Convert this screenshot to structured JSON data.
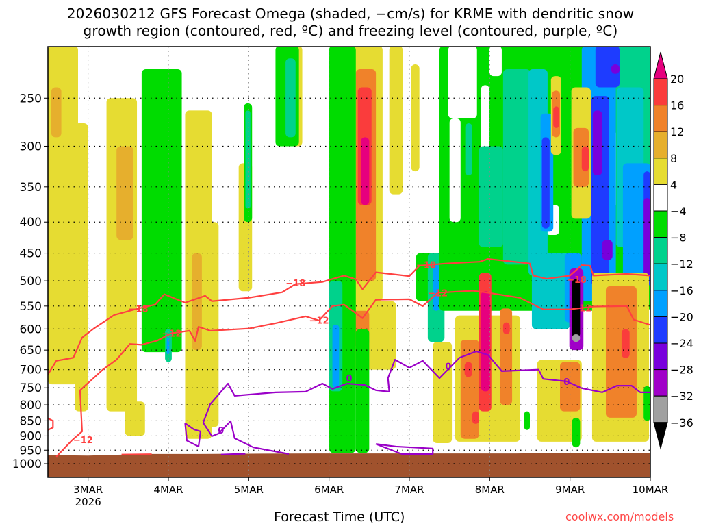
{
  "chart_data": {
    "type": "heatmap",
    "title_lines": [
      "2026030212 GFS Forecast Omega (shaded, −cm/s) for KRME with dendritic snow",
      "growth region (contoured, red, ºC) and freezing level (contoured, purple, ºC)"
    ],
    "xlabel": "Forecast Time (UTC)",
    "ylabel": "",
    "credit": "coolwx.com/models",
    "x_range_hours": [
      0,
      180
    ],
    "y_range_hpa": [
      205,
      1053
    ],
    "y_scale": "log",
    "grid": true,
    "x_ticks": [
      {
        "hour": 12,
        "label": "3MAR",
        "sub": "2026"
      },
      {
        "hour": 36,
        "label": "4MAR"
      },
      {
        "hour": 60,
        "label": "5MAR"
      },
      {
        "hour": 84,
        "label": "6MAR"
      },
      {
        "hour": 108,
        "label": "7MAR"
      },
      {
        "hour": 132,
        "label": "8MAR"
      },
      {
        "hour": 156,
        "label": "9MAR"
      },
      {
        "hour": 180,
        "label": "10MAR"
      }
    ],
    "y_ticks": [
      "250",
      "300",
      "350",
      "400",
      "450",
      "500",
      "550",
      "600",
      "650",
      "700",
      "750",
      "800",
      "850",
      "900",
      "950",
      "1000"
    ],
    "colorbar": {
      "labels": [
        "20",
        "16",
        "12",
        "8",
        "4",
        "−4",
        "−8",
        "−12",
        "−16",
        "−20",
        "−24",
        "−28",
        "−32",
        "−36"
      ],
      "over_color": "#e6007e",
      "under_color": "#000000",
      "colors": [
        "#fa3c3c",
        "#f0822a",
        "#e6af2d",
        "#e6dc32",
        "#ffffff",
        "#00dc00",
        "#00d28c",
        "#00c8c8",
        "#00a0ff",
        "#1e3cff",
        "#7800dc",
        "#a000c8",
        "#a0a0a0"
      ]
    },
    "omega_cells": [
      [
        0,
        9,
        205,
        740,
        6
      ],
      [
        1,
        4,
        240,
        290,
        9
      ],
      [
        8,
        12,
        275,
        820,
        6
      ],
      [
        17.5,
        26.6,
        250,
        820,
        6
      ],
      [
        20.5,
        25.5,
        300,
        428,
        10
      ],
      [
        23,
        29,
        790,
        900,
        6
      ],
      [
        41,
        49,
        262,
        910,
        6
      ],
      [
        43,
        46,
        450,
        650,
        10
      ],
      [
        47.5,
        51,
        400,
        870,
        6
      ],
      [
        57,
        61,
        320,
        520,
        6
      ],
      [
        72,
        76,
        205,
        300,
        6
      ],
      [
        91,
        100,
        205,
        540,
        6
      ],
      [
        92,
        98,
        224,
        500,
        12
      ],
      [
        92.6,
        96.7,
        240,
        375,
        17
      ],
      [
        93.5,
        96,
        290,
        375,
        22
      ],
      [
        90,
        104,
        540,
        700,
        6
      ],
      [
        91,
        96,
        560,
        640,
        12
      ],
      [
        102,
        106,
        205,
        360,
        6
      ],
      [
        108.5,
        111,
        220,
        330,
        6
      ],
      [
        28,
        40,
        224,
        655,
        -6
      ],
      [
        35,
        37,
        600,
        680,
        -10
      ],
      [
        35.5,
        36.3,
        620,
        660,
        -18
      ],
      [
        58.5,
        61,
        255,
        400,
        -6
      ],
      [
        59,
        60.5,
        262,
        380,
        -10
      ],
      [
        68,
        75,
        205,
        300,
        -6
      ],
      [
        71,
        74,
        215,
        290,
        -10
      ],
      [
        84,
        92,
        205,
        960,
        -6
      ],
      [
        84,
        88,
        500,
        760,
        -10
      ],
      [
        85,
        87,
        590,
        750,
        -18
      ],
      [
        92,
        96,
        600,
        960,
        -6
      ],
      [
        110,
        127,
        450,
        540,
        -6
      ],
      [
        113.5,
        118.5,
        450,
        630,
        -10
      ],
      [
        115,
        117,
        470,
        560,
        -20
      ],
      [
        117,
        180,
        205,
        560,
        -6
      ],
      [
        119.6,
        128.2,
        205,
        270,
        0
      ],
      [
        120,
        123.3,
        270,
        400,
        0
      ],
      [
        129.4,
        131.9,
        238,
        375,
        0
      ],
      [
        131.9,
        135.6,
        205,
        230,
        0
      ],
      [
        138.4,
        141.7,
        360,
        437,
        0
      ],
      [
        144.6,
        147.2,
        265,
        285,
        0
      ],
      [
        148.7,
        152.8,
        375,
        420,
        0
      ],
      [
        168.3,
        171.2,
        285,
        375,
        0
      ],
      [
        178,
        180,
        205,
        245,
        0
      ],
      [
        124.7,
        126.8,
        275,
        335,
        -10
      ],
      [
        128.8,
        136,
        300,
        440,
        -10
      ],
      [
        136,
        144.2,
        224,
        470,
        -10
      ],
      [
        169.7,
        180,
        205,
        440,
        -10
      ],
      [
        144.6,
        156,
        450,
        600,
        -13
      ],
      [
        143.6,
        149.3,
        224,
        490,
        -14
      ],
      [
        170,
        178,
        240,
        440,
        -14
      ],
      [
        147.2,
        151,
        265,
        415,
        -18
      ],
      [
        159.5,
        169.7,
        205,
        540,
        -18
      ],
      [
        171.8,
        180,
        320,
        510,
        -18
      ],
      [
        154.4,
        159.5,
        450,
        585,
        -18
      ],
      [
        147.6,
        149.9,
        290,
        410,
        -22
      ],
      [
        162.4,
        167.7,
        248,
        510,
        -22
      ],
      [
        163.6,
        170.8,
        205,
        240,
        -22
      ],
      [
        178,
        180,
        330,
        510,
        -22
      ],
      [
        162.8,
        165.6,
        262,
        335,
        -27
      ],
      [
        165.6,
        168.7,
        428,
        462,
        -27
      ],
      [
        178,
        180,
        365,
        490,
        -27
      ],
      [
        168.3,
        170.8,
        220,
        228,
        -27
      ],
      [
        155.8,
        160,
        477,
        650,
        -31
      ],
      [
        156.6,
        159,
        497,
        620,
        -40
      ],
      [
        156.6,
        159,
        612,
        630,
        -34
      ],
      [
        150.3,
        153.4,
        230,
        310,
        6
      ],
      [
        150.6,
        153,
        243,
        290,
        13
      ],
      [
        151,
        152.8,
        258,
        280,
        17
      ],
      [
        156.4,
        162.2,
        240,
        395,
        6
      ],
      [
        157,
        161.6,
        280,
        350,
        13
      ],
      [
        159.5,
        161.6,
        300,
        330,
        17
      ],
      [
        121.7,
        141.1,
        570,
        920,
        6
      ],
      [
        115,
        120.7,
        630,
        925,
        6
      ],
      [
        123.3,
        128.8,
        625,
        910,
        12
      ],
      [
        126.8,
        128.8,
        820,
        860,
        17
      ],
      [
        124.5,
        126.8,
        680,
        720,
        17
      ],
      [
        128.8,
        132.5,
        485,
        820,
        17
      ],
      [
        129.4,
        132.1,
        520,
        760,
        22
      ],
      [
        135,
        138.7,
        555,
        800,
        13
      ],
      [
        136,
        138,
        585,
        612,
        17
      ],
      [
        146.2,
        159.5,
        675,
        920,
        6
      ],
      [
        153,
        159,
        680,
        820,
        12
      ],
      [
        162.6,
        179.6,
        485,
        920,
        6
      ],
      [
        166.7,
        175.9,
        510,
        840,
        13
      ],
      [
        171.4,
        173.8,
        600,
        670,
        17
      ],
      [
        156.6,
        159,
        840,
        940,
        -6
      ],
      [
        178,
        180,
        745,
        850,
        -6
      ],
      [
        142.3,
        144,
        820,
        880,
        -6
      ]
    ],
    "contours": [
      {
        "level": -18,
        "color": "#ff4040",
        "label": "−18",
        "points": [
          [
            0,
            713
          ],
          [
            2.5,
            677
          ],
          [
            7.6,
            669
          ],
          [
            10.2,
            620
          ],
          [
            13.7,
            599
          ],
          [
            19.8,
            569
          ],
          [
            26,
            557
          ],
          [
            32,
            547
          ],
          [
            34.8,
            526
          ],
          [
            41,
            543
          ],
          [
            47,
            529
          ],
          [
            49,
            540
          ],
          [
            60,
            533
          ],
          [
            70,
            522
          ],
          [
            74,
            506
          ],
          [
            82,
            502
          ],
          [
            88.5,
            490
          ],
          [
            92,
            497
          ],
          [
            94,
            516
          ],
          [
            98,
            484
          ],
          [
            108,
            491
          ],
          [
            111,
            472
          ],
          [
            119,
            468
          ],
          [
            129,
            465
          ],
          [
            131.5,
            460
          ],
          [
            144,
            468
          ],
          [
            145,
            490
          ],
          [
            149,
            496
          ],
          [
            156,
            490
          ],
          [
            159.5,
            471
          ],
          [
            162,
            472
          ],
          [
            163,
            490
          ],
          [
            173,
            487
          ],
          [
            180,
            490
          ]
        ],
        "label_at": [
          [
            27,
            555
          ],
          [
            74,
            504
          ],
          [
            113,
            470
          ],
          [
            158,
            497
          ]
        ]
      },
      {
        "level": -12,
        "color": "#ff4040",
        "label": "−12",
        "points": [
          [
            2.5,
            974
          ],
          [
            7.2,
            915
          ],
          [
            10.2,
            885
          ],
          [
            9.6,
            757
          ],
          [
            16.4,
            700
          ],
          [
            20.5,
            674
          ],
          [
            24.5,
            635
          ],
          [
            28,
            637
          ],
          [
            32.7,
            627
          ],
          [
            36.8,
            610
          ],
          [
            42.3,
            604
          ],
          [
            44,
            628
          ],
          [
            45,
            595
          ],
          [
            48.5,
            604
          ],
          [
            60,
            599
          ],
          [
            68,
            587
          ],
          [
            77,
            572
          ],
          [
            81,
            581
          ],
          [
            85,
            550
          ],
          [
            88.5,
            547
          ],
          [
            92,
            565
          ],
          [
            94,
            576
          ],
          [
            98,
            537
          ],
          [
            108,
            536
          ],
          [
            112,
            550
          ],
          [
            116.5,
            523
          ],
          [
            127,
            519
          ],
          [
            131.5,
            523
          ],
          [
            141,
            533
          ],
          [
            148,
            557
          ],
          [
            156,
            557
          ],
          [
            163,
            551
          ],
          [
            173,
            550
          ],
          [
            175,
            579
          ],
          [
            180,
            591
          ]
        ],
        "label_at": [
          [
            10.5,
            913
          ],
          [
            37,
            610
          ],
          [
            81,
            580
          ],
          [
            116.5,
            523
          ],
          [
            159.5,
            554
          ]
        ]
      },
      {
        "level": -12,
        "color": "#ff4040",
        "label": "",
        "points": [
          [
            0,
            842
          ],
          [
            1.5,
            850
          ],
          [
            1.5,
            872
          ],
          [
            0,
            880
          ]
        ],
        "label_at": []
      },
      {
        "level": -12,
        "color": "#ff4040",
        "label": "",
        "points": [
          [
            22,
            966
          ],
          [
            31,
            965
          ]
        ],
        "label_at": []
      },
      {
        "level": 0,
        "color": "#9a00c8",
        "label": "0",
        "points": [
          [
            46.4,
            856
          ],
          [
            48.5,
            798
          ],
          [
            53.8,
            738
          ],
          [
            55.8,
            773
          ],
          [
            68,
            763
          ],
          [
            77,
            761
          ],
          [
            82,
            738
          ],
          [
            85,
            753
          ],
          [
            89.4,
            738
          ],
          [
            94.7,
            742
          ],
          [
            98,
            757
          ],
          [
            102,
            761
          ],
          [
            101.6,
            723
          ],
          [
            103.7,
            674
          ],
          [
            108,
            695
          ],
          [
            112,
            677
          ],
          [
            117,
            723
          ],
          [
            123,
            669
          ],
          [
            128,
            653
          ],
          [
            131.5,
            662
          ],
          [
            135.6,
            704
          ],
          [
            146.6,
            700
          ],
          [
            148,
            725
          ],
          [
            155,
            732
          ],
          [
            159.5,
            751
          ],
          [
            165.6,
            763
          ],
          [
            170,
            744
          ],
          [
            174.4,
            744
          ],
          [
            177,
            763
          ],
          [
            180,
            763
          ]
        ],
        "label_at": [
          [
            90,
            723
          ],
          [
            119.6,
            691
          ],
          [
            155,
            732
          ]
        ]
      },
      {
        "level": 0,
        "color": "#9a00c8",
        "label": "0",
        "points": [
          [
            46.4,
            856
          ],
          [
            49,
            901
          ],
          [
            51,
            892
          ],
          [
            54.6,
            851
          ],
          [
            55.8,
            908
          ],
          [
            61.4,
            940
          ],
          [
            72,
            964
          ]
        ],
        "label_at": [
          [
            51.7,
            880
          ]
        ]
      },
      {
        "level": 0,
        "color": "#9a00c8",
        "label": "",
        "points": [
          [
            41,
            858
          ],
          [
            41.5,
            916
          ],
          [
            45,
            937
          ],
          [
            45.6,
            885
          ],
          [
            43.6,
            878
          ],
          [
            41,
            858
          ]
        ],
        "label_at": []
      },
      {
        "level": 0,
        "color": "#9a00c8",
        "label": "",
        "points": [
          [
            98,
            928
          ],
          [
            104,
            937
          ],
          [
            115,
            944
          ],
          [
            115,
            964
          ],
          [
            105.7,
            964
          ],
          [
            98,
            928
          ]
        ],
        "label_at": []
      },
      {
        "level": 0,
        "color": "#9a00c8",
        "label": "",
        "points": [
          [
            51.7,
            966
          ],
          [
            59,
            963
          ]
        ],
        "label_at": []
      }
    ],
    "surface_pressure": {
      "color": "#a0522d",
      "points": [
        [
          0,
          968
        ],
        [
          12,
          970
        ],
        [
          20,
          967
        ],
        [
          30,
          964
        ],
        [
          45,
          964
        ],
        [
          60,
          963
        ],
        [
          80,
          962
        ],
        [
          100,
          962
        ],
        [
          120,
          962
        ],
        [
          140,
          962
        ],
        [
          160,
          961
        ],
        [
          180,
          960
        ]
      ]
    }
  }
}
